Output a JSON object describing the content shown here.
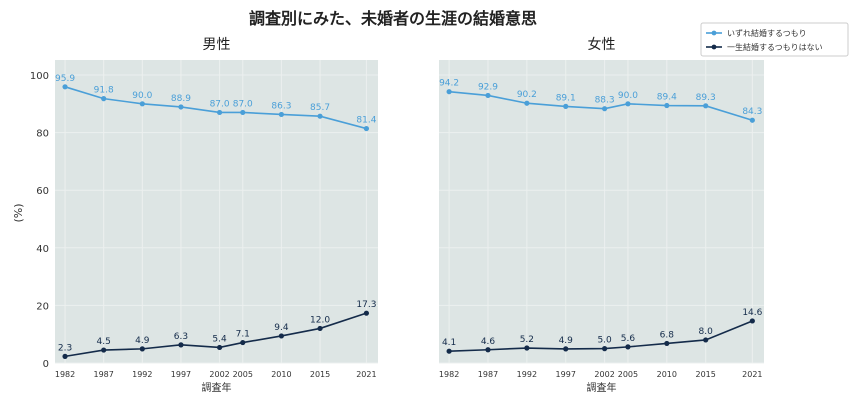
{
  "chart_data": {
    "type": "line",
    "title": "調査別にみた、未婚者の生涯の結婚意思",
    "xlabel": "調査年",
    "ylabel": "(%)",
    "x": [
      1982,
      1987,
      1992,
      1997,
      2002,
      2005,
      2010,
      2015,
      2021
    ],
    "x_ticks": [
      "1982",
      "1987",
      "1992",
      "1997",
      "2002",
      "2005",
      "2010",
      "2015",
      "2021"
    ],
    "ylim": [
      0,
      100
    ],
    "y_ticks": [
      0,
      20,
      40,
      60,
      80,
      100
    ],
    "grid": true,
    "legend_position": "top-right",
    "legend": [
      {
        "name": "いずれ結婚するつもり",
        "color": "#4a9fd8"
      },
      {
        "name": "一生結婚するつもりはない",
        "color": "#142b4a"
      }
    ],
    "panels": [
      {
        "title": "男性",
        "show_y_axis": true,
        "series": [
          {
            "name": "いずれ結婚するつもり",
            "color": "#4a9fd8",
            "values": [
              95.9,
              91.8,
              90.0,
              88.9,
              87.0,
              87.0,
              86.3,
              85.7,
              81.4
            ],
            "labels": [
              "95.9",
              "91.8",
              "90.0",
              "88.9",
              "87.0",
              "87.0",
              "86.3",
              "85.7",
              "81.4"
            ]
          },
          {
            "name": "一生結婚するつもりはない",
            "color": "#142b4a",
            "values": [
              2.3,
              4.5,
              4.9,
              6.3,
              5.4,
              7.1,
              9.4,
              12.0,
              17.3
            ],
            "labels": [
              "2.3",
              "4.5",
              "4.9",
              "6.3",
              "5.4",
              "7.1",
              "9.4",
              "12.0",
              "17.3"
            ]
          }
        ]
      },
      {
        "title": "女性",
        "show_y_axis": false,
        "series": [
          {
            "name": "いずれ結婚するつもり",
            "color": "#4a9fd8",
            "values": [
              94.2,
              92.9,
              90.2,
              89.1,
              88.3,
              90.0,
              89.4,
              89.3,
              84.3
            ],
            "labels": [
              "94.2",
              "92.9",
              "90.2",
              "89.1",
              "88.3",
              "90.0",
              "89.4",
              "89.3",
              "84.3"
            ]
          },
          {
            "name": "一生結婚するつもりはない",
            "color": "#142b4a",
            "values": [
              4.1,
              4.6,
              5.2,
              4.9,
              5.0,
              5.6,
              6.8,
              8.0,
              14.6
            ],
            "labels": [
              "4.1",
              "4.6",
              "5.2",
              "4.9",
              "5.0",
              "5.6",
              "6.8",
              "8.0",
              "14.6"
            ]
          }
        ]
      }
    ]
  },
  "colors": {
    "plot_background": "#dde5e4",
    "gridline": "#ecf0ef",
    "axis_text": "#333333",
    "title_text": "#222222"
  }
}
